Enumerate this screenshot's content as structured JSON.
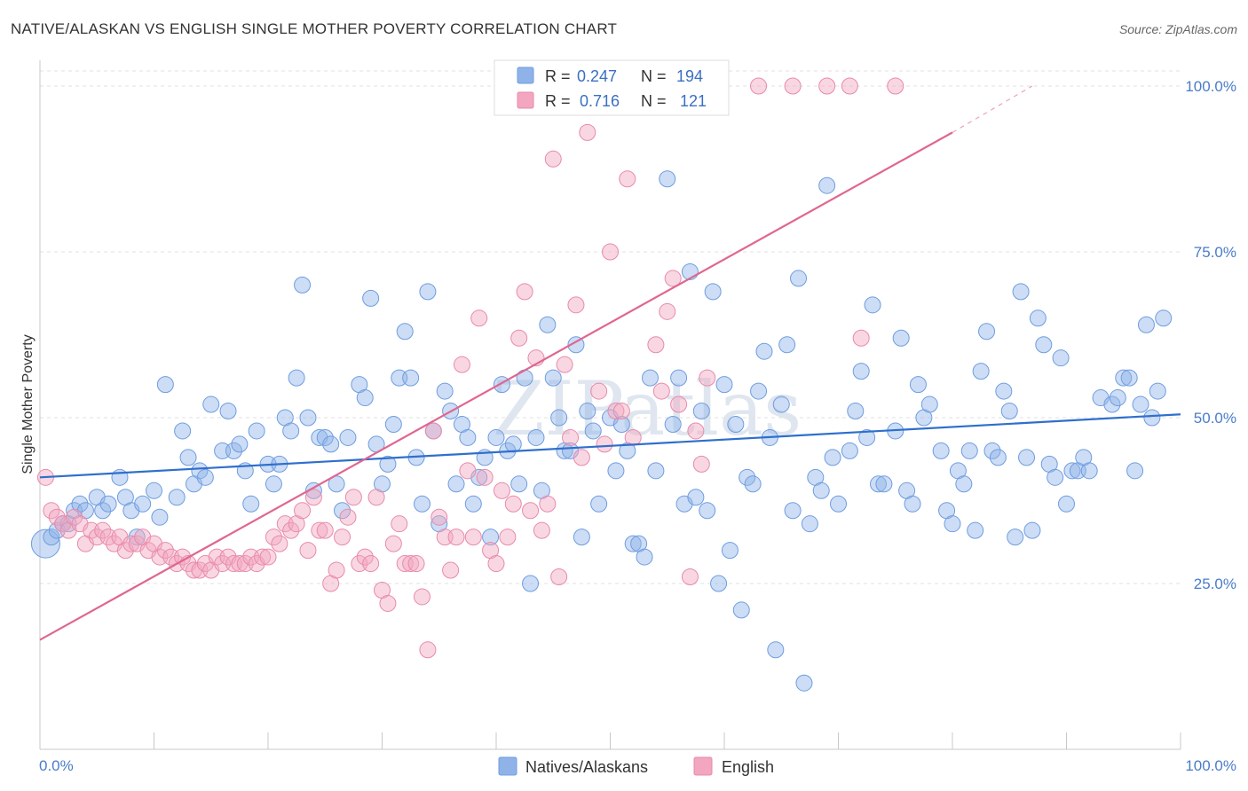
{
  "title": "NATIVE/ALASKAN VS ENGLISH SINGLE MOTHER POVERTY CORRELATION CHART",
  "source": "Source: ZipAtlas.com",
  "watermark": "ZIPatlas",
  "chart_data": {
    "type": "scatter",
    "ylabel": "Single Mother Poverty",
    "xlim": [
      0,
      100
    ],
    "ylim": [
      0,
      104
    ],
    "x_tick_labels": [
      "0.0%",
      "100.0%"
    ],
    "y_ticks": [
      25,
      50,
      75,
      100
    ],
    "y_tick_labels": [
      "25.0%",
      "50.0%",
      "75.0%",
      "100.0%"
    ],
    "grid": true,
    "legend_position": "top-center",
    "series": [
      {
        "name": "Natives/Alaskans",
        "color": "#8fb3e8",
        "line_color": "#2f6fcc",
        "R": "0.247",
        "N": "194",
        "trend": {
          "x": [
            0,
            100
          ],
          "y": [
            41,
            50.5
          ]
        },
        "points": [
          [
            0.5,
            31
          ],
          [
            1,
            32
          ],
          [
            1.5,
            33
          ],
          [
            2,
            34
          ],
          [
            2.5,
            34
          ],
          [
            3,
            36
          ],
          [
            3.5,
            37
          ],
          [
            4,
            36
          ],
          [
            5,
            38
          ],
          [
            5.5,
            36
          ],
          [
            6,
            37
          ],
          [
            7,
            41
          ],
          [
            7.5,
            38
          ],
          [
            8,
            36
          ],
          [
            8.5,
            32
          ],
          [
            9,
            37
          ],
          [
            10,
            39
          ],
          [
            10.5,
            35
          ],
          [
            11,
            55
          ],
          [
            12,
            38
          ],
          [
            12.5,
            48
          ],
          [
            13,
            44
          ],
          [
            13.5,
            40
          ],
          [
            14,
            42
          ],
          [
            14.5,
            41
          ],
          [
            15,
            52
          ],
          [
            16,
            45
          ],
          [
            16.5,
            51
          ],
          [
            17,
            45
          ],
          [
            17.5,
            46
          ],
          [
            18,
            42
          ],
          [
            18.5,
            37
          ],
          [
            19,
            48
          ],
          [
            20,
            43
          ],
          [
            20.5,
            40
          ],
          [
            21,
            43
          ],
          [
            21.5,
            50
          ],
          [
            22,
            48
          ],
          [
            22.5,
            56
          ],
          [
            23,
            70
          ],
          [
            23.5,
            50
          ],
          [
            24,
            39
          ],
          [
            24.5,
            47
          ],
          [
            25,
            47
          ],
          [
            25.5,
            46
          ],
          [
            26,
            40
          ],
          [
            26.5,
            36
          ],
          [
            27,
            47
          ],
          [
            28,
            55
          ],
          [
            28.5,
            53
          ],
          [
            29,
            68
          ],
          [
            29.5,
            46
          ],
          [
            30,
            40
          ],
          [
            30.5,
            43
          ],
          [
            31,
            49
          ],
          [
            31.5,
            56
          ],
          [
            32,
            63
          ],
          [
            32.5,
            56
          ],
          [
            33,
            44
          ],
          [
            33.5,
            37
          ],
          [
            34,
            69
          ],
          [
            34.5,
            48
          ],
          [
            35,
            34
          ],
          [
            35.5,
            54
          ],
          [
            36,
            51
          ],
          [
            36.5,
            40
          ],
          [
            37,
            49
          ],
          [
            37.5,
            47
          ],
          [
            38,
            37
          ],
          [
            38.5,
            41
          ],
          [
            39,
            44
          ],
          [
            39.5,
            32
          ],
          [
            40,
            47
          ],
          [
            40.5,
            55
          ],
          [
            41,
            45
          ],
          [
            41.5,
            46
          ],
          [
            42,
            40
          ],
          [
            42.5,
            56
          ],
          [
            43,
            25
          ],
          [
            43.5,
            47
          ],
          [
            44,
            39
          ],
          [
            44.5,
            64
          ],
          [
            45,
            56
          ],
          [
            45.5,
            50
          ],
          [
            46,
            45
          ],
          [
            46.5,
            45
          ],
          [
            47,
            61
          ],
          [
            47.5,
            32
          ],
          [
            48,
            51
          ],
          [
            48.5,
            48
          ],
          [
            49,
            37
          ],
          [
            50,
            50
          ],
          [
            50.5,
            42
          ],
          [
            51,
            49
          ],
          [
            51.5,
            45
          ],
          [
            52,
            31
          ],
          [
            52.5,
            31
          ],
          [
            53,
            29
          ],
          [
            53.5,
            56
          ],
          [
            54,
            42
          ],
          [
            55,
            86
          ],
          [
            55.5,
            49
          ],
          [
            56,
            56
          ],
          [
            56.5,
            37
          ],
          [
            57,
            72
          ],
          [
            57.5,
            38
          ],
          [
            58,
            51
          ],
          [
            58.5,
            36
          ],
          [
            59,
            69
          ],
          [
            59.5,
            25
          ],
          [
            60,
            55
          ],
          [
            60.5,
            30
          ],
          [
            61,
            49
          ],
          [
            61.5,
            21
          ],
          [
            62,
            41
          ],
          [
            62.5,
            40
          ],
          [
            63,
            54
          ],
          [
            63.5,
            60
          ],
          [
            64,
            47
          ],
          [
            64.5,
            15
          ],
          [
            65,
            52
          ],
          [
            65.5,
            61
          ],
          [
            66,
            36
          ],
          [
            66.5,
            71
          ],
          [
            67,
            10
          ],
          [
            67.5,
            34
          ],
          [
            68,
            41
          ],
          [
            68.5,
            39
          ],
          [
            69,
            85
          ],
          [
            69.5,
            44
          ],
          [
            70,
            37
          ],
          [
            71,
            45
          ],
          [
            71.5,
            51
          ],
          [
            72,
            57
          ],
          [
            72.5,
            47
          ],
          [
            73,
            67
          ],
          [
            73.5,
            40
          ],
          [
            74,
            40
          ],
          [
            75,
            48
          ],
          [
            75.5,
            62
          ],
          [
            76,
            39
          ],
          [
            76.5,
            37
          ],
          [
            77,
            55
          ],
          [
            77.5,
            50
          ],
          [
            78,
            52
          ],
          [
            79,
            45
          ],
          [
            79.5,
            36
          ],
          [
            80,
            34
          ],
          [
            80.5,
            42
          ],
          [
            81,
            40
          ],
          [
            81.5,
            45
          ],
          [
            82,
            33
          ],
          [
            82.5,
            57
          ],
          [
            83,
            63
          ],
          [
            83.5,
            45
          ],
          [
            84,
            44
          ],
          [
            84.5,
            54
          ],
          [
            85,
            51
          ],
          [
            85.5,
            32
          ],
          [
            86,
            69
          ],
          [
            86.5,
            44
          ],
          [
            87,
            33
          ],
          [
            87.5,
            65
          ],
          [
            88,
            61
          ],
          [
            88.5,
            43
          ],
          [
            89,
            41
          ],
          [
            89.5,
            59
          ],
          [
            90,
            37
          ],
          [
            90.5,
            42
          ],
          [
            91,
            42
          ],
          [
            91.5,
            44
          ],
          [
            92,
            42
          ],
          [
            93,
            53
          ],
          [
            94,
            52
          ],
          [
            94.5,
            53
          ],
          [
            95,
            56
          ],
          [
            95.5,
            56
          ],
          [
            96,
            42
          ],
          [
            96.5,
            52
          ],
          [
            97,
            64
          ],
          [
            97.5,
            50
          ],
          [
            98,
            54
          ],
          [
            98.5,
            65
          ]
        ]
      },
      {
        "name": "English",
        "color": "#f2a6bf",
        "line_color": "#e06690",
        "R": "0.716",
        "N": "121",
        "trend": {
          "x": [
            0,
            80
          ],
          "y": [
            16.5,
            93
          ]
        },
        "trend_extension": {
          "x": [
            80,
            87
          ],
          "y": [
            93,
            100
          ]
        },
        "points": [
          [
            0.5,
            41
          ],
          [
            1,
            36
          ],
          [
            1.5,
            35
          ],
          [
            2,
            34
          ],
          [
            2.5,
            33
          ],
          [
            3,
            35
          ],
          [
            3.5,
            34
          ],
          [
            4,
            31
          ],
          [
            4.5,
            33
          ],
          [
            5,
            32
          ],
          [
            5.5,
            33
          ],
          [
            6,
            32
          ],
          [
            6.5,
            31
          ],
          [
            7,
            32
          ],
          [
            7.5,
            30
          ],
          [
            8,
            31
          ],
          [
            8.5,
            31
          ],
          [
            9,
            32
          ],
          [
            9.5,
            30
          ],
          [
            10,
            31
          ],
          [
            10.5,
            29
          ],
          [
            11,
            30
          ],
          [
            11.5,
            29
          ],
          [
            12,
            28
          ],
          [
            12.5,
            29
          ],
          [
            13,
            28
          ],
          [
            13.5,
            27
          ],
          [
            14,
            27
          ],
          [
            14.5,
            28
          ],
          [
            15,
            27
          ],
          [
            15.5,
            29
          ],
          [
            16,
            28
          ],
          [
            16.5,
            29
          ],
          [
            17,
            28
          ],
          [
            17.5,
            28
          ],
          [
            18,
            28
          ],
          [
            18.5,
            29
          ],
          [
            19,
            28
          ],
          [
            19.5,
            29
          ],
          [
            20,
            29
          ],
          [
            20.5,
            32
          ],
          [
            21,
            31
          ],
          [
            21.5,
            34
          ],
          [
            22,
            33
          ],
          [
            22.5,
            34
          ],
          [
            23,
            36
          ],
          [
            23.5,
            30
          ],
          [
            24,
            38
          ],
          [
            24.5,
            33
          ],
          [
            25,
            33
          ],
          [
            25.5,
            25
          ],
          [
            26,
            27
          ],
          [
            26.5,
            32
          ],
          [
            27,
            35
          ],
          [
            27.5,
            38
          ],
          [
            28,
            28
          ],
          [
            28.5,
            29
          ],
          [
            29,
            28
          ],
          [
            29.5,
            38
          ],
          [
            30,
            24
          ],
          [
            30.5,
            22
          ],
          [
            31,
            31
          ],
          [
            31.5,
            34
          ],
          [
            32,
            28
          ],
          [
            32.5,
            28
          ],
          [
            33,
            28
          ],
          [
            33.5,
            23
          ],
          [
            34,
            15
          ],
          [
            34.5,
            48
          ],
          [
            35,
            35
          ],
          [
            35.5,
            32
          ],
          [
            36,
            27
          ],
          [
            36.5,
            32
          ],
          [
            37,
            58
          ],
          [
            37.5,
            42
          ],
          [
            38,
            32
          ],
          [
            38.5,
            65
          ],
          [
            39,
            41
          ],
          [
            39.5,
            30
          ],
          [
            40,
            28
          ],
          [
            40.5,
            39
          ],
          [
            41,
            32
          ],
          [
            41.5,
            37
          ],
          [
            42,
            62
          ],
          [
            42.5,
            69
          ],
          [
            43,
            36
          ],
          [
            43.5,
            59
          ],
          [
            44,
            33
          ],
          [
            44.5,
            37
          ],
          [
            45,
            89
          ],
          [
            45.5,
            26
          ],
          [
            46,
            58
          ],
          [
            46.5,
            47
          ],
          [
            47,
            67
          ],
          [
            47.5,
            44
          ],
          [
            48,
            93
          ],
          [
            48.5,
            98
          ],
          [
            49,
            54
          ],
          [
            49.5,
            46
          ],
          [
            50,
            75
          ],
          [
            50.5,
            51
          ],
          [
            51,
            51
          ],
          [
            51.5,
            86
          ],
          [
            52,
            47
          ],
          [
            52.5,
            98
          ],
          [
            53,
            100
          ],
          [
            53.5,
            100
          ],
          [
            54,
            61
          ],
          [
            54.5,
            54
          ],
          [
            55,
            66
          ],
          [
            55.5,
            71
          ],
          [
            56,
            52
          ],
          [
            57,
            26
          ],
          [
            57.5,
            48
          ],
          [
            58,
            43
          ],
          [
            58.5,
            56
          ],
          [
            63,
            100
          ],
          [
            66,
            100
          ],
          [
            69,
            100
          ],
          [
            71,
            100
          ],
          [
            72,
            62
          ],
          [
            75,
            100
          ]
        ]
      }
    ]
  },
  "legend": {
    "r_label": "R =",
    "n_label": "N ="
  }
}
